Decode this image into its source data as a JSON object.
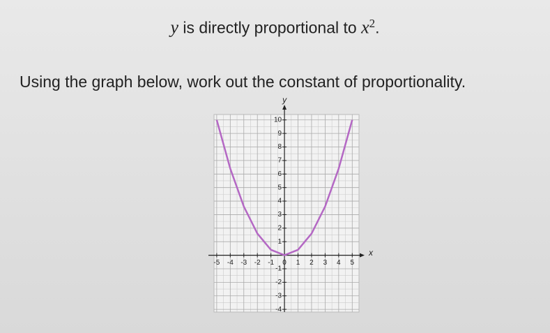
{
  "statement": {
    "variable": "y",
    "text": "is directly proportional to",
    "base": "x",
    "exponent": "2",
    "end": "."
  },
  "question": "Using the graph below, work out the constant of proportionality.",
  "chart_data": {
    "type": "line",
    "x_label": "x",
    "y_label": "y",
    "x": [
      -5,
      -4,
      -3,
      -2,
      -1,
      0,
      1,
      2,
      3,
      4,
      5
    ],
    "series": [
      {
        "color": "#b468c4",
        "values": [
          10,
          6.4,
          3.6,
          1.6,
          0.4,
          0,
          0.4,
          1.6,
          3.6,
          6.4,
          10
        ]
      }
    ],
    "xlim": [
      -5.2,
      5.5
    ],
    "ylim": [
      -4.2,
      10.4
    ],
    "xticks": [
      -5,
      -4,
      -3,
      -2,
      -1,
      0,
      1,
      2,
      3,
      4,
      5
    ],
    "yticks": [
      -4,
      -3,
      -2,
      -1,
      1,
      2,
      3,
      4,
      5,
      6,
      7,
      8,
      9,
      10
    ],
    "grid": true
  }
}
